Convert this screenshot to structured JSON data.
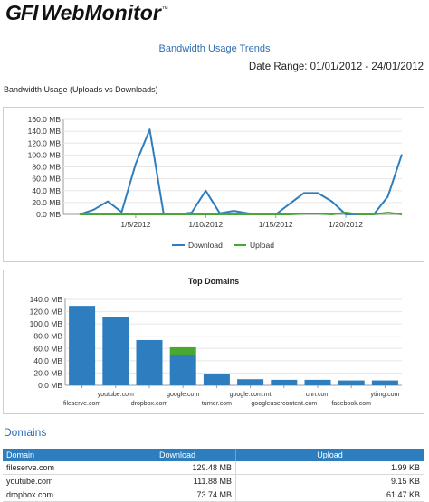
{
  "logo": {
    "brand": "GFI",
    "product": "WebMonitor",
    "tm": "™"
  },
  "report": {
    "title": "Bandwidth Usage Trends",
    "date_range": "Date Range: 01/01/2012 - 24/01/2012"
  },
  "trend_section_caption": "Bandwidth Usage (Uploads vs Downloads)",
  "domains_heading": "Domains",
  "colors": {
    "download": "#2e7ebf",
    "upload": "#4aa832",
    "accent": "#2f6fb3"
  },
  "chart_data": [
    {
      "type": "line",
      "title": "",
      "x_tick_labels": [
        "1/5/2012",
        "1/10/2012",
        "1/15/2012",
        "1/20/2012"
      ],
      "x_tick_days": [
        5,
        10,
        15,
        20
      ],
      "x": [
        1,
        2,
        3,
        4,
        5,
        6,
        7,
        8,
        9,
        10,
        11,
        12,
        13,
        14,
        15,
        16,
        17,
        18,
        19,
        20,
        21,
        22,
        23,
        24
      ],
      "y_ticks": [
        "0.0 MB",
        "20.0 MB",
        "40.0 MB",
        "60.0 MB",
        "80.0 MB",
        "100.0 MB",
        "120.0 MB",
        "140.0 MB",
        "160.0 MB"
      ],
      "ylim": [
        0,
        160
      ],
      "legend_position": "bottom",
      "series": [
        {
          "name": "Download",
          "values": [
            0,
            8,
            22,
            4,
            85,
            143,
            0,
            0,
            3,
            40,
            2,
            6,
            2,
            0,
            0,
            18,
            36,
            36,
            22,
            0,
            0,
            0,
            30,
            101
          ]
        },
        {
          "name": "Upload",
          "values": [
            0,
            0,
            0,
            0,
            0,
            0,
            0,
            0,
            0,
            0,
            0,
            0,
            0,
            0,
            0,
            0,
            1,
            1,
            0,
            3,
            0,
            0,
            3,
            0
          ]
        }
      ]
    },
    {
      "type": "bar",
      "title": "Top Domains",
      "categories": [
        "fileserve.com",
        "youtube.com",
        "dropbox.com",
        "google.com",
        "turner.com",
        "google.com.mt",
        "googleusercontent.com",
        "cnn.com",
        "facebook.com",
        "ytimg.com"
      ],
      "y_ticks": [
        "0.0 MB",
        "20.0 MB",
        "40.0 MB",
        "60.0 MB",
        "80.0 MB",
        "100.0 MB",
        "120.0 MB",
        "140.0 MB"
      ],
      "ylim": [
        0,
        140
      ],
      "series": [
        {
          "name": "Download",
          "values": [
            129.48,
            111.88,
            73.74,
            50,
            18,
            10,
            9,
            9,
            8,
            8
          ]
        },
        {
          "name": "Upload",
          "values": [
            0.0019,
            0.009,
            0.06,
            12,
            0,
            0,
            0,
            0,
            0,
            0
          ]
        }
      ]
    }
  ],
  "table": {
    "headers": [
      "Domain",
      "Download",
      "Upload"
    ],
    "rows": [
      {
        "domain": "fileserve.com",
        "download": "129.48 MB",
        "upload": "1.99 KB"
      },
      {
        "domain": "youtube.com",
        "download": "111.88 MB",
        "upload": "9.15 KB"
      },
      {
        "domain": "dropbox.com",
        "download": "73.74 MB",
        "upload": "61.47 KB"
      }
    ]
  }
}
